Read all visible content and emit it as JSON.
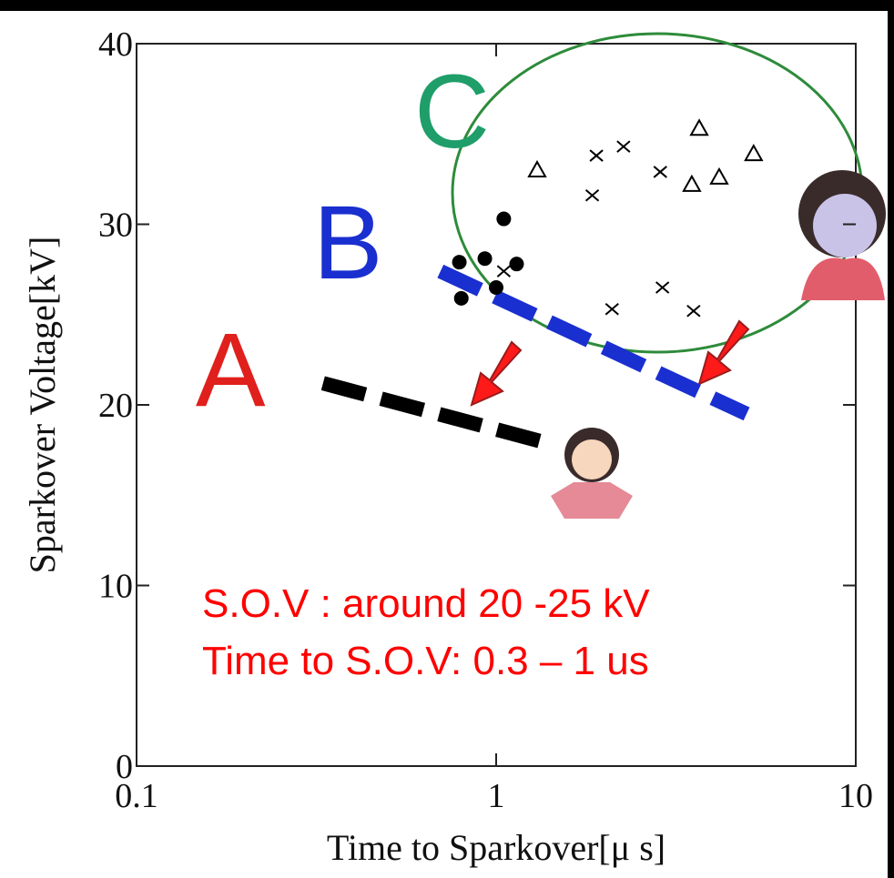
{
  "chart_data": {
    "type": "scatter",
    "xlabel": "Time to Sparkover[μ s]",
    "ylabel": "Sparkover Voltage[kV]",
    "xscale": "log",
    "xlim": [
      0.1,
      10
    ],
    "xticks": [
      0.1,
      1,
      10
    ],
    "ylim": [
      0,
      40
    ],
    "yticks": [
      0,
      10,
      20,
      30,
      40
    ],
    "series": [
      {
        "marker": "circle",
        "color": "#000000",
        "x": [
          0.79,
          0.93,
          1.05,
          1.14,
          0.8,
          1.0
        ],
        "values": [
          27.9,
          28.1,
          30.3,
          27.8,
          25.9,
          26.5
        ]
      },
      {
        "marker": "cross",
        "color": "#000000",
        "x": [
          1.9,
          2.26,
          2.86,
          1.85,
          2.1,
          2.9,
          3.54,
          1.05
        ],
        "values": [
          33.8,
          34.3,
          32.9,
          31.6,
          25.3,
          26.5,
          25.2,
          27.4
        ]
      },
      {
        "marker": "triangle",
        "color": "#000000",
        "x": [
          1.3,
          3.67,
          3.5,
          4.17,
          5.2
        ],
        "values": [
          33.0,
          35.3,
          32.2,
          32.6,
          33.9
        ]
      }
    ],
    "trend_lines": [
      {
        "label": "A",
        "color": "#000000",
        "label_color": "#e0201c",
        "x": [
          0.33,
          1.38
        ],
        "values": [
          21.2,
          17.9
        ]
      },
      {
        "label": "B",
        "color": "#1a2fd0",
        "label_color": "#1a2fd0",
        "x": [
          0.7,
          4.97
        ],
        "values": [
          27.4,
          19.5
        ]
      }
    ],
    "region": {
      "label": "C",
      "color": "#2e8b3a",
      "label_color": "#1f9e6a"
    },
    "notes": [
      "S.O.V : around 20 -25 kV",
      "Time to S.O.V: 0.3 – 1 us"
    ],
    "note_color": "#ff0000"
  }
}
